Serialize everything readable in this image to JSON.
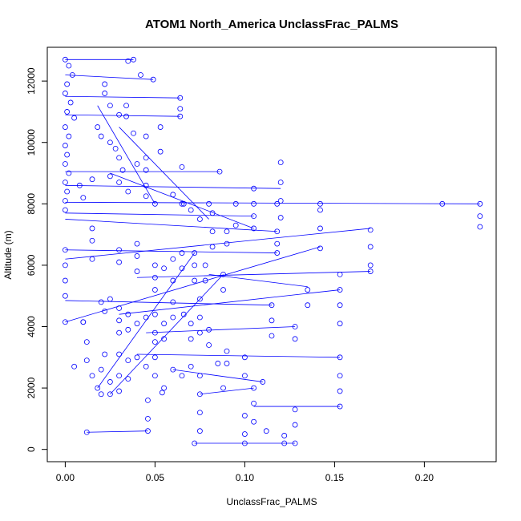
{
  "chart_data": {
    "type": "scatter",
    "title": "ATOM1 North_America UnclassFrac_PALMS",
    "xlabel": "UnclassFrac_PALMS",
    "ylabel": "Altitude (m)",
    "xlim": [
      -0.01,
      0.24
    ],
    "ylim": [
      -400,
      13100
    ],
    "x_ticks": [
      0.0,
      0.05,
      0.1,
      0.15,
      0.2
    ],
    "x_tick_labels": [
      "0.00",
      "0.05",
      "0.10",
      "0.15",
      "0.20"
    ],
    "y_ticks": [
      0,
      2000,
      4000,
      6000,
      8000,
      10000,
      12000
    ],
    "y_tick_labels": [
      "0",
      "2000",
      "4000",
      "6000",
      "8000",
      "10000",
      "12000"
    ],
    "grid": false,
    "legend": "none",
    "marker": "open-circle",
    "color": "#0000ff",
    "series": [
      {
        "points": [
          [
            0.0,
            12700
          ],
          [
            0.002,
            12500
          ],
          [
            0.004,
            12200
          ],
          [
            0.001,
            11900
          ],
          [
            0.0,
            11600
          ],
          [
            0.003,
            11300
          ],
          [
            0.001,
            11000
          ],
          [
            0.005,
            10800
          ],
          [
            0.0,
            10500
          ],
          [
            0.002,
            10200
          ],
          [
            0.0,
            9900
          ],
          [
            0.001,
            9600
          ],
          [
            0.0,
            9300
          ],
          [
            0.002,
            9000
          ],
          [
            0.0,
            8700
          ],
          [
            0.001,
            8400
          ],
          [
            0.0,
            8100
          ],
          [
            0.0,
            7800
          ],
          [
            0.038,
            12700
          ],
          [
            0.035,
            12650
          ],
          [
            0.042,
            12200
          ],
          [
            0.049,
            12050
          ],
          [
            0.022,
            11900
          ],
          [
            0.022,
            11600
          ],
          [
            0.064,
            11450
          ],
          [
            0.064,
            11100
          ],
          [
            0.064,
            10850
          ],
          [
            0.025,
            11200
          ],
          [
            0.034,
            11200
          ],
          [
            0.03,
            10900
          ],
          [
            0.034,
            10850
          ],
          [
            0.018,
            10500
          ],
          [
            0.02,
            10200
          ],
          [
            0.025,
            10000
          ],
          [
            0.028,
            9800
          ],
          [
            0.038,
            10300
          ],
          [
            0.053,
            10500
          ],
          [
            0.053,
            9700
          ],
          [
            0.045,
            10200
          ],
          [
            0.045,
            9500
          ],
          [
            0.03,
            9500
          ],
          [
            0.032,
            9100
          ],
          [
            0.04,
            9300
          ],
          [
            0.045,
            9100
          ],
          [
            0.065,
            9200
          ],
          [
            0.086,
            9050
          ],
          [
            0.025,
            8900
          ],
          [
            0.015,
            8800
          ],
          [
            0.008,
            8600
          ],
          [
            0.01,
            8200
          ],
          [
            0.03,
            8700
          ],
          [
            0.035,
            8400
          ],
          [
            0.045,
            8600
          ],
          [
            0.045,
            8250
          ],
          [
            0.05,
            8000
          ],
          [
            0.066,
            8000
          ],
          [
            0.06,
            8300
          ],
          [
            0.065,
            8000
          ],
          [
            0.08,
            8000
          ],
          [
            0.095,
            8000
          ],
          [
            0.118,
            8000
          ],
          [
            0.142,
            8000
          ],
          [
            0.21,
            8000
          ],
          [
            0.231,
            8000
          ],
          [
            0.231,
            7600
          ],
          [
            0.231,
            7250
          ],
          [
            0.12,
            9350
          ],
          [
            0.12,
            8700
          ],
          [
            0.12,
            8100
          ],
          [
            0.12,
            7550
          ],
          [
            0.105,
            8500
          ],
          [
            0.105,
            8000
          ],
          [
            0.105,
            7600
          ],
          [
            0.105,
            7200
          ],
          [
            0.07,
            7800
          ],
          [
            0.075,
            7500
          ],
          [
            0.082,
            7700
          ],
          [
            0.082,
            7100
          ],
          [
            0.082,
            6600
          ],
          [
            0.09,
            7100
          ],
          [
            0.09,
            6700
          ],
          [
            0.095,
            7300
          ],
          [
            0.118,
            7100
          ],
          [
            0.118,
            6700
          ],
          [
            0.118,
            6400
          ],
          [
            0.142,
            7800
          ],
          [
            0.142,
            7200
          ],
          [
            0.142,
            6550
          ],
          [
            0.17,
            7150
          ],
          [
            0.17,
            6600
          ],
          [
            0.17,
            6000
          ],
          [
            0.17,
            5800
          ],
          [
            0.015,
            7200
          ],
          [
            0.015,
            6800
          ],
          [
            0.015,
            6200
          ],
          [
            0.0,
            6500
          ],
          [
            0.0,
            6000
          ],
          [
            0.0,
            5500
          ],
          [
            0.0,
            5000
          ],
          [
            0.03,
            6500
          ],
          [
            0.03,
            6100
          ],
          [
            0.04,
            6700
          ],
          [
            0.04,
            6300
          ],
          [
            0.04,
            5800
          ],
          [
            0.05,
            6000
          ],
          [
            0.05,
            5600
          ],
          [
            0.05,
            5200
          ],
          [
            0.055,
            5900
          ],
          [
            0.06,
            6200
          ],
          [
            0.06,
            5500
          ],
          [
            0.065,
            6400
          ],
          [
            0.065,
            5900
          ],
          [
            0.072,
            6400
          ],
          [
            0.072,
            6000
          ],
          [
            0.072,
            5500
          ],
          [
            0.078,
            6000
          ],
          [
            0.078,
            5500
          ],
          [
            0.088,
            5700
          ],
          [
            0.088,
            5200
          ],
          [
            0.135,
            5200
          ],
          [
            0.135,
            4700
          ],
          [
            0.153,
            5700
          ],
          [
            0.153,
            5200
          ],
          [
            0.153,
            4700
          ],
          [
            0.153,
            4100
          ],
          [
            0.128,
            4000
          ],
          [
            0.128,
            3600
          ],
          [
            0.115,
            4700
          ],
          [
            0.115,
            4200
          ],
          [
            0.115,
            3700
          ],
          [
            0.0,
            4150
          ],
          [
            0.01,
            4150
          ],
          [
            0.02,
            4800
          ],
          [
            0.022,
            4500
          ],
          [
            0.025,
            4900
          ],
          [
            0.03,
            4600
          ],
          [
            0.03,
            4200
          ],
          [
            0.03,
            3800
          ],
          [
            0.035,
            4400
          ],
          [
            0.035,
            3900
          ],
          [
            0.04,
            4100
          ],
          [
            0.045,
            4300
          ],
          [
            0.05,
            4400
          ],
          [
            0.05,
            3800
          ],
          [
            0.05,
            3500
          ],
          [
            0.055,
            4100
          ],
          [
            0.055,
            3600
          ],
          [
            0.06,
            4800
          ],
          [
            0.06,
            4300
          ],
          [
            0.066,
            4400
          ],
          [
            0.07,
            4100
          ],
          [
            0.07,
            3600
          ],
          [
            0.075,
            4900
          ],
          [
            0.075,
            4300
          ],
          [
            0.075,
            3800
          ],
          [
            0.08,
            3900
          ],
          [
            0.08,
            3400
          ],
          [
            0.09,
            3200
          ],
          [
            0.09,
            2800
          ],
          [
            0.01,
            4150
          ],
          [
            0.012,
            3500
          ],
          [
            0.012,
            2900
          ],
          [
            0.005,
            2700
          ],
          [
            0.015,
            2400
          ],
          [
            0.018,
            2000
          ],
          [
            0.02,
            2600
          ],
          [
            0.022,
            3100
          ],
          [
            0.025,
            2200
          ],
          [
            0.025,
            1800
          ],
          [
            0.03,
            3100
          ],
          [
            0.03,
            2400
          ],
          [
            0.035,
            2900
          ],
          [
            0.035,
            2300
          ],
          [
            0.04,
            3000
          ],
          [
            0.045,
            2700
          ],
          [
            0.05,
            3000
          ],
          [
            0.05,
            2400
          ],
          [
            0.055,
            2000
          ],
          [
            0.06,
            2600
          ],
          [
            0.065,
            2400
          ],
          [
            0.07,
            2700
          ],
          [
            0.075,
            2400
          ],
          [
            0.085,
            2800
          ],
          [
            0.1,
            3000
          ],
          [
            0.1,
            2400
          ],
          [
            0.105,
            2000
          ],
          [
            0.105,
            1500
          ],
          [
            0.105,
            900
          ],
          [
            0.11,
            2200
          ],
          [
            0.128,
            1300
          ],
          [
            0.128,
            800
          ],
          [
            0.128,
            200
          ],
          [
            0.153,
            3000
          ],
          [
            0.153,
            2400
          ],
          [
            0.153,
            1900
          ],
          [
            0.153,
            1400
          ],
          [
            0.02,
            1800
          ],
          [
            0.03,
            1900
          ],
          [
            0.046,
            1600
          ],
          [
            0.046,
            1000
          ],
          [
            0.046,
            600
          ],
          [
            0.054,
            1850
          ],
          [
            0.075,
            1800
          ],
          [
            0.075,
            1200
          ],
          [
            0.075,
            600
          ],
          [
            0.088,
            2000
          ],
          [
            0.1,
            1100
          ],
          [
            0.1,
            500
          ],
          [
            0.1,
            200
          ],
          [
            0.112,
            600
          ],
          [
            0.122,
            450
          ],
          [
            0.122,
            200
          ],
          [
            0.072,
            200
          ],
          [
            0.012,
            560
          ]
        ],
        "segments": [
          [
            [
              0.0,
              12700
            ],
            [
              0.038,
              12700
            ]
          ],
          [
            [
              0.0,
              12200
            ],
            [
              0.049,
              12050
            ]
          ],
          [
            [
              0.0,
              11500
            ],
            [
              0.064,
              11450
            ]
          ],
          [
            [
              0.0,
              10900
            ],
            [
              0.064,
              10850
            ]
          ],
          [
            [
              0.0,
              9050
            ],
            [
              0.086,
              9050
            ]
          ],
          [
            [
              0.0,
              8600
            ],
            [
              0.12,
              8500
            ]
          ],
          [
            [
              0.0,
              8050
            ],
            [
              0.231,
              8000
            ]
          ],
          [
            [
              0.0,
              7700
            ],
            [
              0.105,
              7600
            ]
          ],
          [
            [
              0.0,
              7500
            ],
            [
              0.118,
              7100
            ]
          ],
          [
            [
              0.0,
              6500
            ],
            [
              0.118,
              6400
            ]
          ],
          [
            [
              0.0,
              6200
            ],
            [
              0.17,
              7200
            ]
          ],
          [
            [
              0.04,
              5600
            ],
            [
              0.17,
              5800
            ]
          ],
          [
            [
              0.0,
              4850
            ],
            [
              0.115,
              4700
            ]
          ],
          [
            [
              0.0,
              4150
            ],
            [
              0.142,
              6600
            ]
          ],
          [
            [
              0.03,
              4400
            ],
            [
              0.153,
              5200
            ]
          ],
          [
            [
              0.045,
              3800
            ],
            [
              0.128,
              4000
            ]
          ],
          [
            [
              0.04,
              3100
            ],
            [
              0.153,
              3000
            ]
          ],
          [
            [
              0.06,
              2600
            ],
            [
              0.11,
              2200
            ]
          ],
          [
            [
              0.075,
              1800
            ],
            [
              0.105,
              2000
            ]
          ],
          [
            [
              0.012,
              560
            ],
            [
              0.046,
              600
            ]
          ],
          [
            [
              0.072,
              200
            ],
            [
              0.128,
              200
            ]
          ],
          [
            [
              0.105,
              1400
            ],
            [
              0.153,
              1400
            ]
          ],
          [
            [
              0.08,
              5700
            ],
            [
              0.135,
              5300
            ]
          ],
          [
            [
              0.018,
              2000
            ],
            [
              0.072,
              6400
            ]
          ],
          [
            [
              0.025,
              1800
            ],
            [
              0.088,
              5700
            ]
          ],
          [
            [
              0.03,
              10500
            ],
            [
              0.08,
              7500
            ]
          ],
          [
            [
              0.025,
              9000
            ],
            [
              0.105,
              7200
            ]
          ],
          [
            [
              0.018,
              11200
            ],
            [
              0.05,
              8000
            ]
          ]
        ]
      }
    ]
  }
}
